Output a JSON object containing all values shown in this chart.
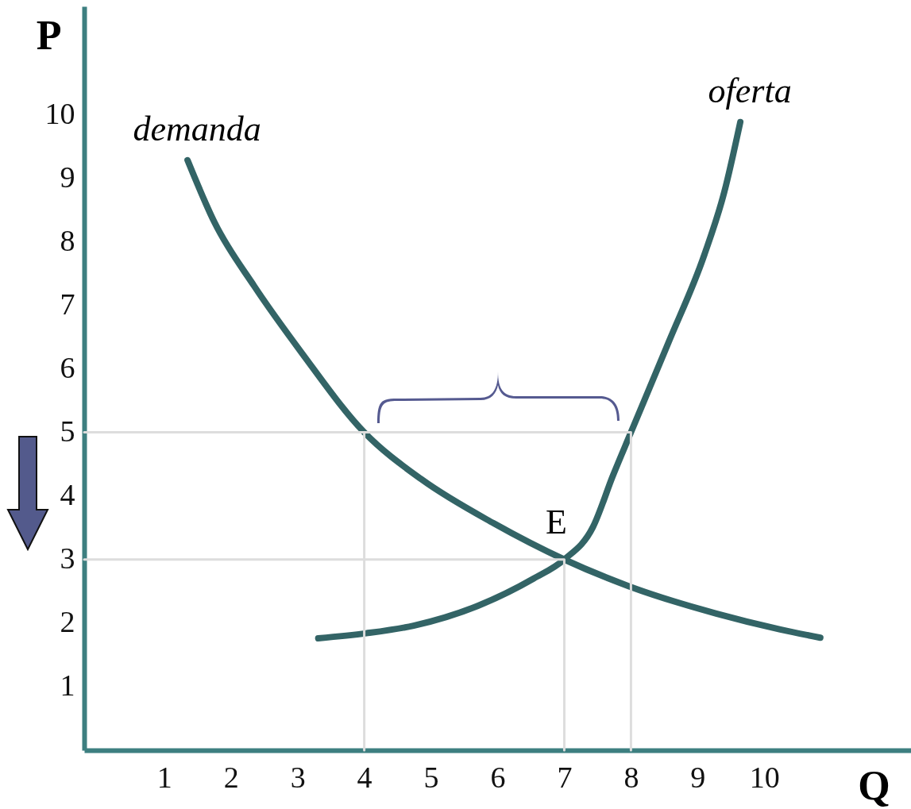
{
  "chart_data": {
    "type": "line",
    "xlabel": "Q",
    "ylabel": "P",
    "xlim": [
      -0.2,
      12.2
    ],
    "ylim": [
      0,
      11.7
    ],
    "xticks": [
      1,
      2,
      3,
      4,
      5,
      6,
      7,
      8,
      9,
      10
    ],
    "yticks": [
      1,
      2,
      3,
      4,
      5,
      6,
      7,
      8,
      9,
      10
    ],
    "grid": false,
    "series": [
      {
        "name": "demanda",
        "color": "#336466",
        "x": [
          1.35,
          1.76,
          2.35,
          3.07,
          4,
          4.86,
          5.94,
          7,
          7.97,
          9.28,
          10.24,
          10.84
        ],
        "values": [
          9.28,
          8.29,
          7.3,
          6.24,
          5,
          4.26,
          3.57,
          3,
          2.58,
          2.15,
          1.9,
          1.77
        ]
      },
      {
        "name": "oferta",
        "color": "#336466",
        "x": [
          3.31,
          4.03,
          4.74,
          5.7,
          6.54,
          7,
          7.43,
          7.73,
          8,
          8.57,
          9.1,
          9.4,
          9.64
        ],
        "values": [
          1.76,
          1.84,
          1.96,
          2.27,
          2.7,
          3,
          3.51,
          4.32,
          5,
          6.43,
          7.79,
          8.78,
          9.88
        ]
      },
      {
        "color": "#dddddd",
        "x": [
          -0.2,
          8,
          8
        ],
        "values": [
          5,
          5,
          0
        ]
      },
      {
        "color": "#dddddd",
        "x": [
          -0.2,
          7,
          7
        ],
        "values": [
          3,
          3,
          0
        ]
      },
      {
        "color": "#dddddd",
        "x": [
          4,
          4
        ],
        "values": [
          5,
          0
        ]
      }
    ],
    "annotations": [
      {
        "text": "E",
        "x": 7,
        "y": 3
      }
    ]
  }
}
